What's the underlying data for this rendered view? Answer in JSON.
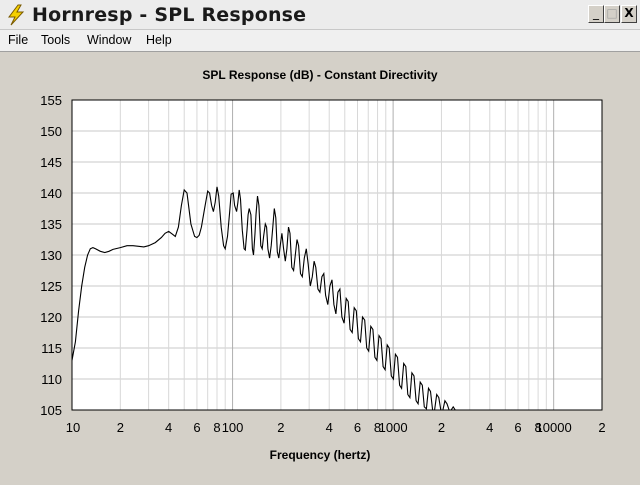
{
  "window": {
    "title": "Hornresp - SPL Response",
    "app_icon": "lightning-bolt-icon",
    "controls": {
      "minimize": "_",
      "maximize": "□",
      "close": "X"
    }
  },
  "menu": {
    "items": [
      {
        "label": "File"
      },
      {
        "label": "Tools"
      },
      {
        "label": "Window"
      },
      {
        "label": "Help"
      }
    ]
  },
  "chart_data": {
    "type": "line",
    "title": "SPL Response (dB) - Constant Directivity",
    "xlabel": "Frequency (hertz)",
    "ylabel": "",
    "xscale": "log",
    "xlim": [
      10,
      20000
    ],
    "ylim": [
      105,
      155
    ],
    "yticks": [
      "155",
      "150",
      "145",
      "140",
      "135",
      "130",
      "125",
      "120",
      "115",
      "110",
      "105"
    ],
    "xticks": [
      {
        "value": 10,
        "label": "10"
      },
      {
        "value": 20,
        "label": "2"
      },
      {
        "value": 40,
        "label": "4"
      },
      {
        "value": 60,
        "label": "6"
      },
      {
        "value": 80,
        "label": "8"
      },
      {
        "value": 100,
        "label": "100"
      },
      {
        "value": 200,
        "label": "2"
      },
      {
        "value": 400,
        "label": "4"
      },
      {
        "value": 600,
        "label": "6"
      },
      {
        "value": 800,
        "label": "8"
      },
      {
        "value": 1000,
        "label": "1000"
      },
      {
        "value": 2000,
        "label": "2"
      },
      {
        "value": 4000,
        "label": "4"
      },
      {
        "value": 6000,
        "label": "6"
      },
      {
        "value": 8000,
        "label": "8"
      },
      {
        "value": 10000,
        "label": "10000"
      },
      {
        "value": 20000,
        "label": "2"
      }
    ],
    "grid": true,
    "legend": "none",
    "series": [
      {
        "values": [
          [
            10,
            113
          ],
          [
            10.5,
            116
          ],
          [
            11,
            121
          ],
          [
            11.5,
            125
          ],
          [
            12,
            128
          ],
          [
            12.5,
            130
          ],
          [
            13,
            131
          ],
          [
            13.5,
            131.2
          ],
          [
            14,
            131
          ],
          [
            15,
            130.6
          ],
          [
            16,
            130.4
          ],
          [
            17,
            130.6
          ],
          [
            18,
            130.9
          ],
          [
            20,
            131.2
          ],
          [
            22,
            131.5
          ],
          [
            24,
            131.5
          ],
          [
            26,
            131.4
          ],
          [
            28,
            131.3
          ],
          [
            30,
            131.5
          ],
          [
            33,
            132
          ],
          [
            36,
            132.8
          ],
          [
            38,
            133.5
          ],
          [
            40,
            133.8
          ],
          [
            42,
            133.4
          ],
          [
            44,
            133
          ],
          [
            46,
            134.5
          ],
          [
            48,
            138
          ],
          [
            50,
            140.5
          ],
          [
            52,
            140
          ],
          [
            55,
            135
          ],
          [
            58,
            133
          ],
          [
            60,
            132.8
          ],
          [
            62,
            133.2
          ],
          [
            64,
            134.5
          ],
          [
            67,
            137.5
          ],
          [
            70,
            140.3
          ],
          [
            72,
            140
          ],
          [
            74,
            138
          ],
          [
            76,
            137
          ],
          [
            78,
            138.5
          ],
          [
            80,
            141
          ],
          [
            82,
            139.5
          ],
          [
            85,
            134.5
          ],
          [
            88,
            131.5
          ],
          [
            90,
            131
          ],
          [
            93,
            133
          ],
          [
            96,
            137
          ],
          [
            98,
            139.8
          ],
          [
            101,
            140
          ],
          [
            103,
            138
          ],
          [
            106,
            137
          ],
          [
            108,
            138.5
          ],
          [
            110,
            140.5
          ],
          [
            112,
            139
          ],
          [
            115,
            134
          ],
          [
            118,
            131
          ],
          [
            120,
            130.8
          ],
          [
            123,
            134
          ],
          [
            125,
            136.5
          ],
          [
            127,
            137.5
          ],
          [
            130,
            136.5
          ],
          [
            133,
            131
          ],
          [
            135,
            130
          ],
          [
            138,
            133.5
          ],
          [
            140,
            136.5
          ],
          [
            143,
            139.5
          ],
          [
            146,
            138
          ],
          [
            150,
            131.5
          ],
          [
            153,
            131
          ],
          [
            156,
            133
          ],
          [
            160,
            135
          ],
          [
            163,
            134.5
          ],
          [
            166,
            131
          ],
          [
            170,
            129.5
          ],
          [
            174,
            131.5
          ],
          [
            178,
            134.5
          ],
          [
            182,
            137.5
          ],
          [
            186,
            136
          ],
          [
            190,
            130.5
          ],
          [
            194,
            129.5
          ],
          [
            198,
            131.5
          ],
          [
            203,
            133.5
          ],
          [
            208,
            131
          ],
          [
            213,
            129
          ],
          [
            218,
            131
          ],
          [
            223,
            134.5
          ],
          [
            228,
            133.5
          ],
          [
            234,
            128
          ],
          [
            240,
            127.5
          ],
          [
            246,
            130
          ],
          [
            252,
            132.5
          ],
          [
            258,
            131.5
          ],
          [
            265,
            127
          ],
          [
            272,
            126.5
          ],
          [
            280,
            129.5
          ],
          [
            288,
            131
          ],
          [
            296,
            128.5
          ],
          [
            305,
            125
          ],
          [
            314,
            126.5
          ],
          [
            322,
            129
          ],
          [
            330,
            128
          ],
          [
            340,
            124.5
          ],
          [
            350,
            124
          ],
          [
            360,
            126.5
          ],
          [
            370,
            127
          ],
          [
            380,
            123.5
          ],
          [
            392,
            122
          ],
          [
            404,
            125
          ],
          [
            416,
            126
          ],
          [
            428,
            122
          ],
          [
            440,
            120.5
          ],
          [
            453,
            124
          ],
          [
            466,
            124.5
          ],
          [
            480,
            120
          ],
          [
            495,
            119
          ],
          [
            510,
            123
          ],
          [
            525,
            122.5
          ],
          [
            540,
            118
          ],
          [
            556,
            117.5
          ],
          [
            572,
            121.5
          ],
          [
            590,
            121
          ],
          [
            608,
            116.5
          ],
          [
            626,
            116
          ],
          [
            645,
            120
          ],
          [
            665,
            119.5
          ],
          [
            685,
            115
          ],
          [
            705,
            114.5
          ],
          [
            726,
            118.5
          ],
          [
            748,
            118
          ],
          [
            770,
            113.5
          ],
          [
            793,
            113
          ],
          [
            817,
            117
          ],
          [
            841,
            116.5
          ],
          [
            866,
            112
          ],
          [
            892,
            111.5
          ],
          [
            919,
            115.5
          ],
          [
            946,
            115
          ],
          [
            975,
            110.5
          ],
          [
            1004,
            110
          ],
          [
            1034,
            114
          ],
          [
            1065,
            113.5
          ],
          [
            1097,
            109
          ],
          [
            1130,
            108.5
          ],
          [
            1164,
            112.5
          ],
          [
            1199,
            112
          ],
          [
            1235,
            107.5
          ],
          [
            1272,
            107
          ],
          [
            1310,
            111
          ],
          [
            1350,
            110.5
          ],
          [
            1390,
            106.5
          ],
          [
            1432,
            106
          ],
          [
            1475,
            109.5
          ],
          [
            1519,
            109
          ],
          [
            1565,
            105.5
          ],
          [
            1612,
            105.2
          ],
          [
            1660,
            108.5
          ],
          [
            1710,
            108
          ],
          [
            1761,
            105
          ],
          [
            1814,
            105
          ],
          [
            1868,
            107.5
          ],
          [
            1925,
            107
          ],
          [
            1982,
            105
          ],
          [
            2042,
            105
          ],
          [
            2103,
            106.5
          ],
          [
            2166,
            106
          ],
          [
            2231,
            105
          ],
          [
            2298,
            105
          ],
          [
            2367,
            105.5
          ],
          [
            2438,
            105
          ]
        ]
      }
    ]
  }
}
